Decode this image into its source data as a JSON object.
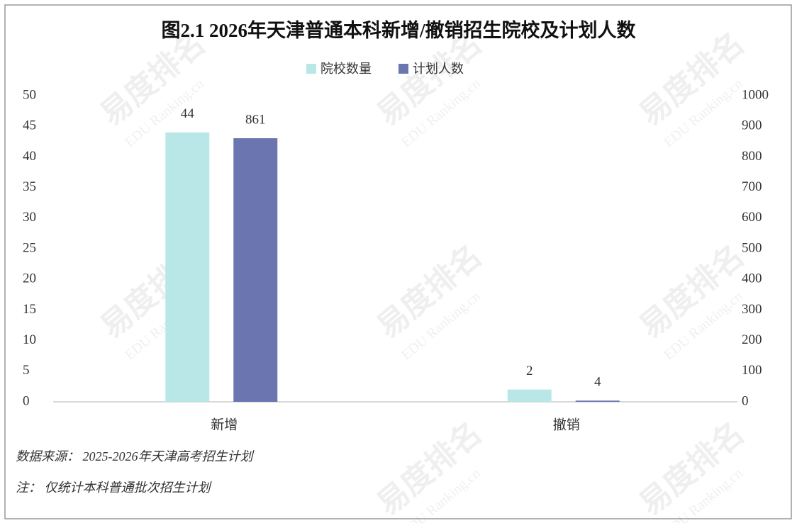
{
  "chart_data": {
    "type": "bar",
    "title": "图2.1  2026年天津普通本科新增/撤销招生院校及计划人数",
    "categories": [
      "新增",
      "撤销"
    ],
    "series": [
      {
        "name": "院校数量",
        "color": "#b9e7e8",
        "values": [
          44,
          2
        ]
      },
      {
        "name": "计划人数",
        "color": "#6b76b0",
        "values": [
          861,
          4
        ],
        "axis": "y2"
      }
    ],
    "ylim": [
      0,
      50
    ],
    "yticks": [
      0,
      5,
      10,
      15,
      20,
      25,
      30,
      35,
      40,
      45,
      50
    ],
    "y2lim": [
      0,
      1000
    ],
    "y2ticks": [
      0,
      100,
      200,
      300,
      400,
      500,
      600,
      700,
      800,
      900,
      1000
    ],
    "grid": false,
    "legend": "top",
    "source": "数据来源：  2025-2026年天津高考招生计划",
    "note": "注：  仅统计本科普通批次招生计划",
    "watermark": "易度排名",
    "watermark_sub": "EDU Ranking.cn"
  }
}
